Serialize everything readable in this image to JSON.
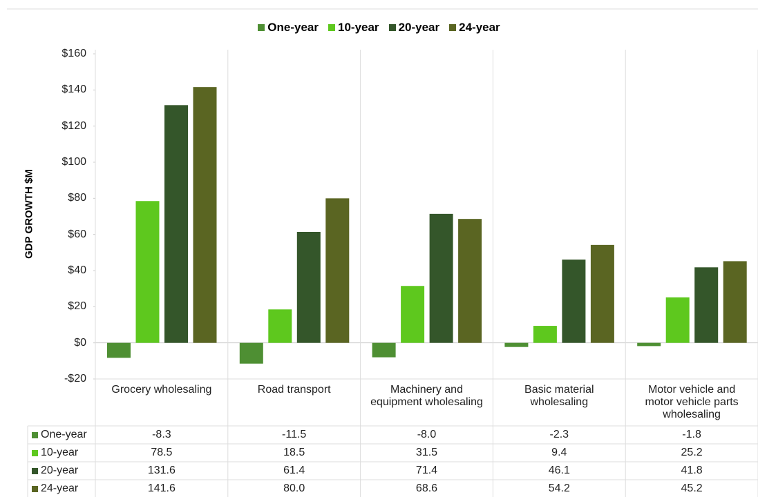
{
  "chart_data": {
    "type": "bar",
    "y_axis_label": "GDP GROWTH $M",
    "categories": [
      "Grocery wholesaling",
      "Road transport",
      "Machinery and equipment wholesaling",
      "Basic material wholesaling",
      "Motor vehicle and motor vehicle parts wholesaling"
    ],
    "series": [
      {
        "name": "One-year",
        "color": "#4e8f33",
        "values": [
          -8.3,
          -11.5,
          -8.0,
          -2.3,
          -1.8
        ],
        "value_labels": [
          "-8.3",
          "-11.5",
          "-8.0",
          "-2.3",
          "-1.8"
        ]
      },
      {
        "name": "10-year",
        "color": "#5ec81e",
        "values": [
          78.5,
          18.5,
          31.5,
          9.4,
          25.2
        ],
        "value_labels": [
          "78.5",
          "18.5",
          "31.5",
          "9.4",
          "25.2"
        ]
      },
      {
        "name": "20-year",
        "color": "#34562a",
        "values": [
          131.6,
          61.4,
          71.4,
          46.1,
          41.8
        ],
        "value_labels": [
          "131.6",
          "61.4",
          "71.4",
          "46.1",
          "41.8"
        ]
      },
      {
        "name": "24-year",
        "color": "#5a6522",
        "values": [
          141.6,
          80.0,
          68.6,
          54.2,
          45.2
        ],
        "value_labels": [
          "141.6",
          "80.0",
          "68.6",
          "54.2",
          "45.2"
        ]
      }
    ],
    "ylim": [
      -20,
      160
    ],
    "yticks": [
      {
        "value": -20,
        "label": "-$20"
      },
      {
        "value": 0,
        "label": "$0"
      },
      {
        "value": 20,
        "label": "$20"
      },
      {
        "value": 40,
        "label": "$40"
      },
      {
        "value": 60,
        "label": "$60"
      },
      {
        "value": 80,
        "label": "$80"
      },
      {
        "value": 100,
        "label": "$100"
      },
      {
        "value": 120,
        "label": "$120"
      },
      {
        "value": 140,
        "label": "$140"
      },
      {
        "value": 160,
        "label": "$160"
      }
    ]
  }
}
